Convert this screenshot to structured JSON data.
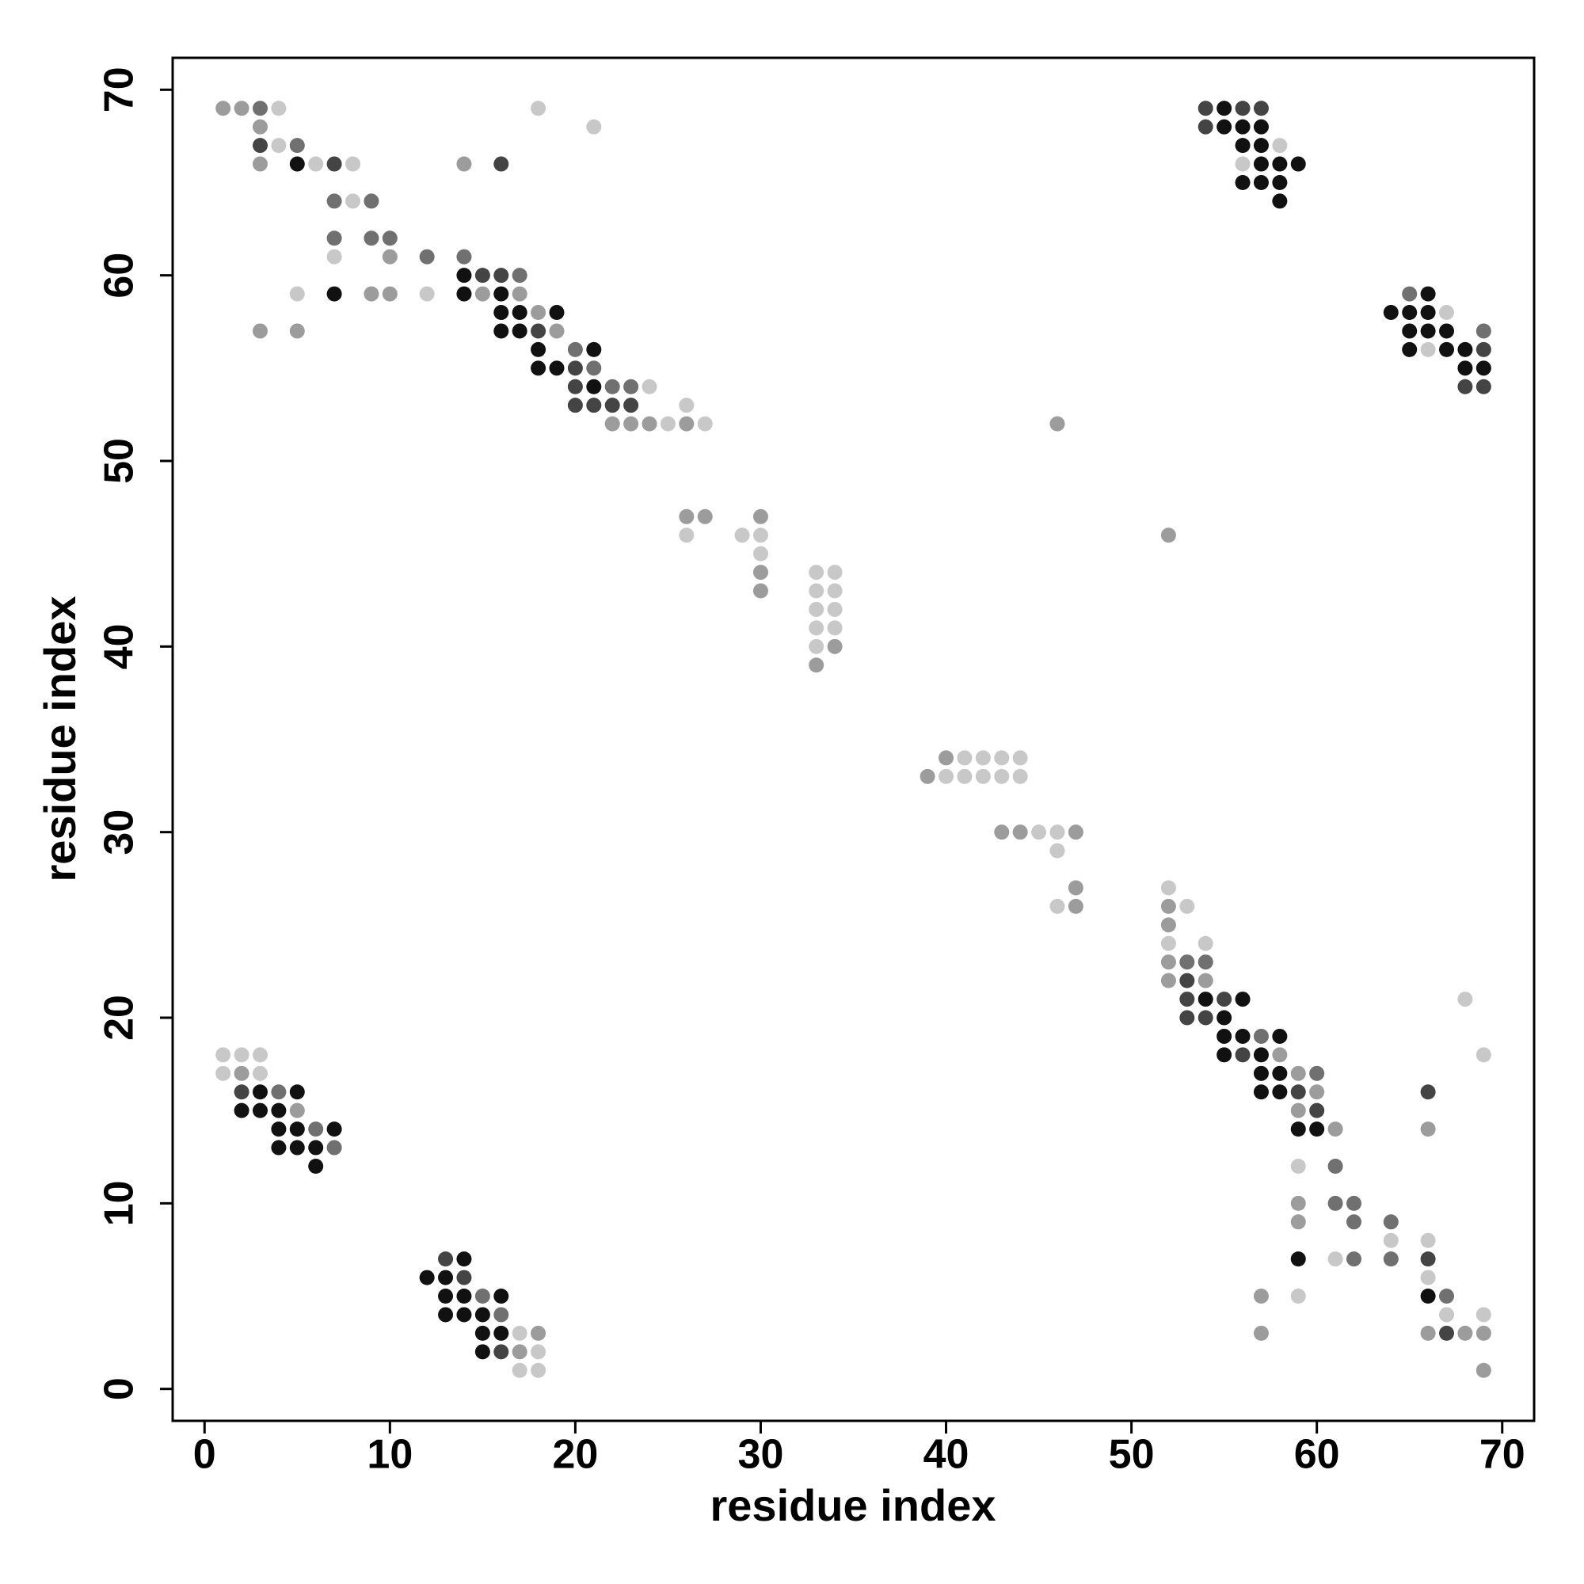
{
  "chart_data": {
    "type": "scatter",
    "xlabel": "residue index",
    "ylabel": "residue index",
    "xlim": [
      -1.72,
      71.72
    ],
    "ylim": [
      -1.72,
      71.72
    ],
    "xticks": [
      0,
      10,
      20,
      30,
      40,
      50,
      60,
      70
    ],
    "yticks": [
      0,
      10,
      20,
      30,
      40,
      50,
      60,
      70
    ],
    "series": [
      {
        "color": "#111111",
        "x": [
          55,
          55,
          56,
          57,
          56,
          57,
          5,
          57,
          58,
          59,
          56,
          57,
          58,
          58,
          14,
          7,
          14,
          16,
          66,
          16,
          17,
          19,
          64,
          65,
          66,
          16,
          17,
          65,
          66,
          67,
          18,
          21,
          65,
          67,
          68,
          18,
          19,
          68,
          69,
          21,
          54,
          56,
          55,
          55,
          56,
          58,
          55,
          57,
          57,
          58,
          3,
          5,
          57,
          58,
          2,
          3,
          4,
          4,
          5,
          7,
          59,
          60,
          4,
          5,
          6,
          6,
          14,
          59,
          12,
          13,
          13,
          14,
          16,
          66,
          13,
          14,
          15,
          15,
          16,
          15
        ],
        "values": [
          69,
          68,
          68,
          68,
          67,
          67,
          66,
          66,
          66,
          66,
          65,
          65,
          65,
          64,
          60,
          59,
          59,
          59,
          59,
          58,
          58,
          58,
          58,
          58,
          58,
          57,
          57,
          57,
          57,
          57,
          56,
          56,
          56,
          56,
          56,
          55,
          55,
          55,
          55,
          54,
          21,
          21,
          20,
          19,
          19,
          19,
          18,
          18,
          17,
          17,
          16,
          16,
          16,
          16,
          15,
          15,
          15,
          14,
          14,
          14,
          14,
          14,
          13,
          13,
          13,
          12,
          7,
          7,
          6,
          6,
          5,
          5,
          5,
          5,
          4,
          4,
          4,
          3,
          3,
          2
        ]
      },
      {
        "color": "#444444",
        "x": [
          54,
          56,
          57,
          54,
          3,
          7,
          16,
          15,
          16,
          18,
          69,
          20,
          20,
          68,
          69,
          20,
          21,
          22,
          23,
          53,
          53,
          55,
          53,
          54,
          56,
          2,
          59,
          66,
          60,
          13,
          66,
          14,
          67,
          16
        ],
        "values": [
          69,
          69,
          69,
          68,
          67,
          66,
          66,
          60,
          60,
          57,
          56,
          55,
          54,
          54,
          54,
          53,
          53,
          53,
          53,
          22,
          21,
          21,
          20,
          20,
          18,
          16,
          16,
          16,
          15,
          7,
          7,
          6,
          3,
          2
        ]
      },
      {
        "color": "#707070",
        "x": [
          3,
          5,
          7,
          9,
          7,
          9,
          10,
          12,
          14,
          17,
          65,
          69,
          20,
          21,
          22,
          23,
          53,
          54,
          57,
          60,
          4,
          6,
          7,
          61,
          61,
          62,
          62,
          64,
          62,
          64,
          15,
          67,
          16
        ],
        "values": [
          69,
          67,
          64,
          64,
          62,
          62,
          62,
          61,
          61,
          60,
          59,
          57,
          56,
          55,
          54,
          54,
          23,
          23,
          19,
          17,
          16,
          14,
          13,
          12,
          10,
          10,
          9,
          9,
          7,
          7,
          5,
          5,
          4
        ]
      },
      {
        "color": "#9c9c9c",
        "x": [
          1,
          2,
          3,
          3,
          14,
          10,
          9,
          10,
          15,
          17,
          18,
          3,
          5,
          19,
          22,
          23,
          24,
          26,
          46,
          26,
          27,
          30,
          52,
          30,
          30,
          34,
          33,
          40,
          39,
          43,
          44,
          47,
          47,
          47,
          52,
          52,
          52,
          52,
          54,
          58,
          2,
          59,
          60,
          5,
          59,
          61,
          66,
          59,
          59,
          57,
          18,
          57,
          66,
          68,
          69,
          17,
          69
        ],
        "values": [
          69,
          69,
          68,
          66,
          66,
          61,
          59,
          59,
          59,
          59,
          58,
          57,
          57,
          57,
          52,
          52,
          52,
          52,
          52,
          47,
          47,
          47,
          46,
          44,
          43,
          40,
          39,
          34,
          33,
          30,
          30,
          30,
          27,
          26,
          26,
          25,
          23,
          22,
          22,
          18,
          17,
          17,
          16,
          15,
          15,
          14,
          14,
          10,
          9,
          5,
          3,
          3,
          3,
          3,
          3,
          2,
          1
        ]
      },
      {
        "color": "#c8c8c8",
        "x": [
          4,
          18,
          21,
          4,
          58,
          6,
          8,
          56,
          8,
          7,
          5,
          12,
          67,
          66,
          24,
          26,
          25,
          27,
          26,
          29,
          30,
          30,
          33,
          34,
          33,
          34,
          33,
          34,
          33,
          34,
          33,
          41,
          42,
          43,
          44,
          40,
          41,
          42,
          43,
          44,
          45,
          46,
          46,
          52,
          46,
          53,
          52,
          54,
          68,
          1,
          2,
          3,
          69,
          1,
          3,
          59,
          64,
          66,
          61,
          66,
          59,
          67,
          69,
          17,
          18,
          17,
          18
        ],
        "values": [
          69,
          69,
          68,
          67,
          67,
          66,
          66,
          66,
          64,
          61,
          59,
          59,
          58,
          56,
          54,
          53,
          52,
          52,
          46,
          46,
          46,
          45,
          44,
          44,
          43,
          43,
          42,
          42,
          41,
          41,
          40,
          34,
          34,
          34,
          34,
          33,
          33,
          33,
          33,
          33,
          30,
          30,
          29,
          27,
          26,
          26,
          24,
          24,
          21,
          18,
          18,
          18,
          18,
          17,
          17,
          12,
          8,
          8,
          7,
          6,
          5,
          4,
          4,
          3,
          2,
          1,
          1
        ]
      }
    ]
  }
}
